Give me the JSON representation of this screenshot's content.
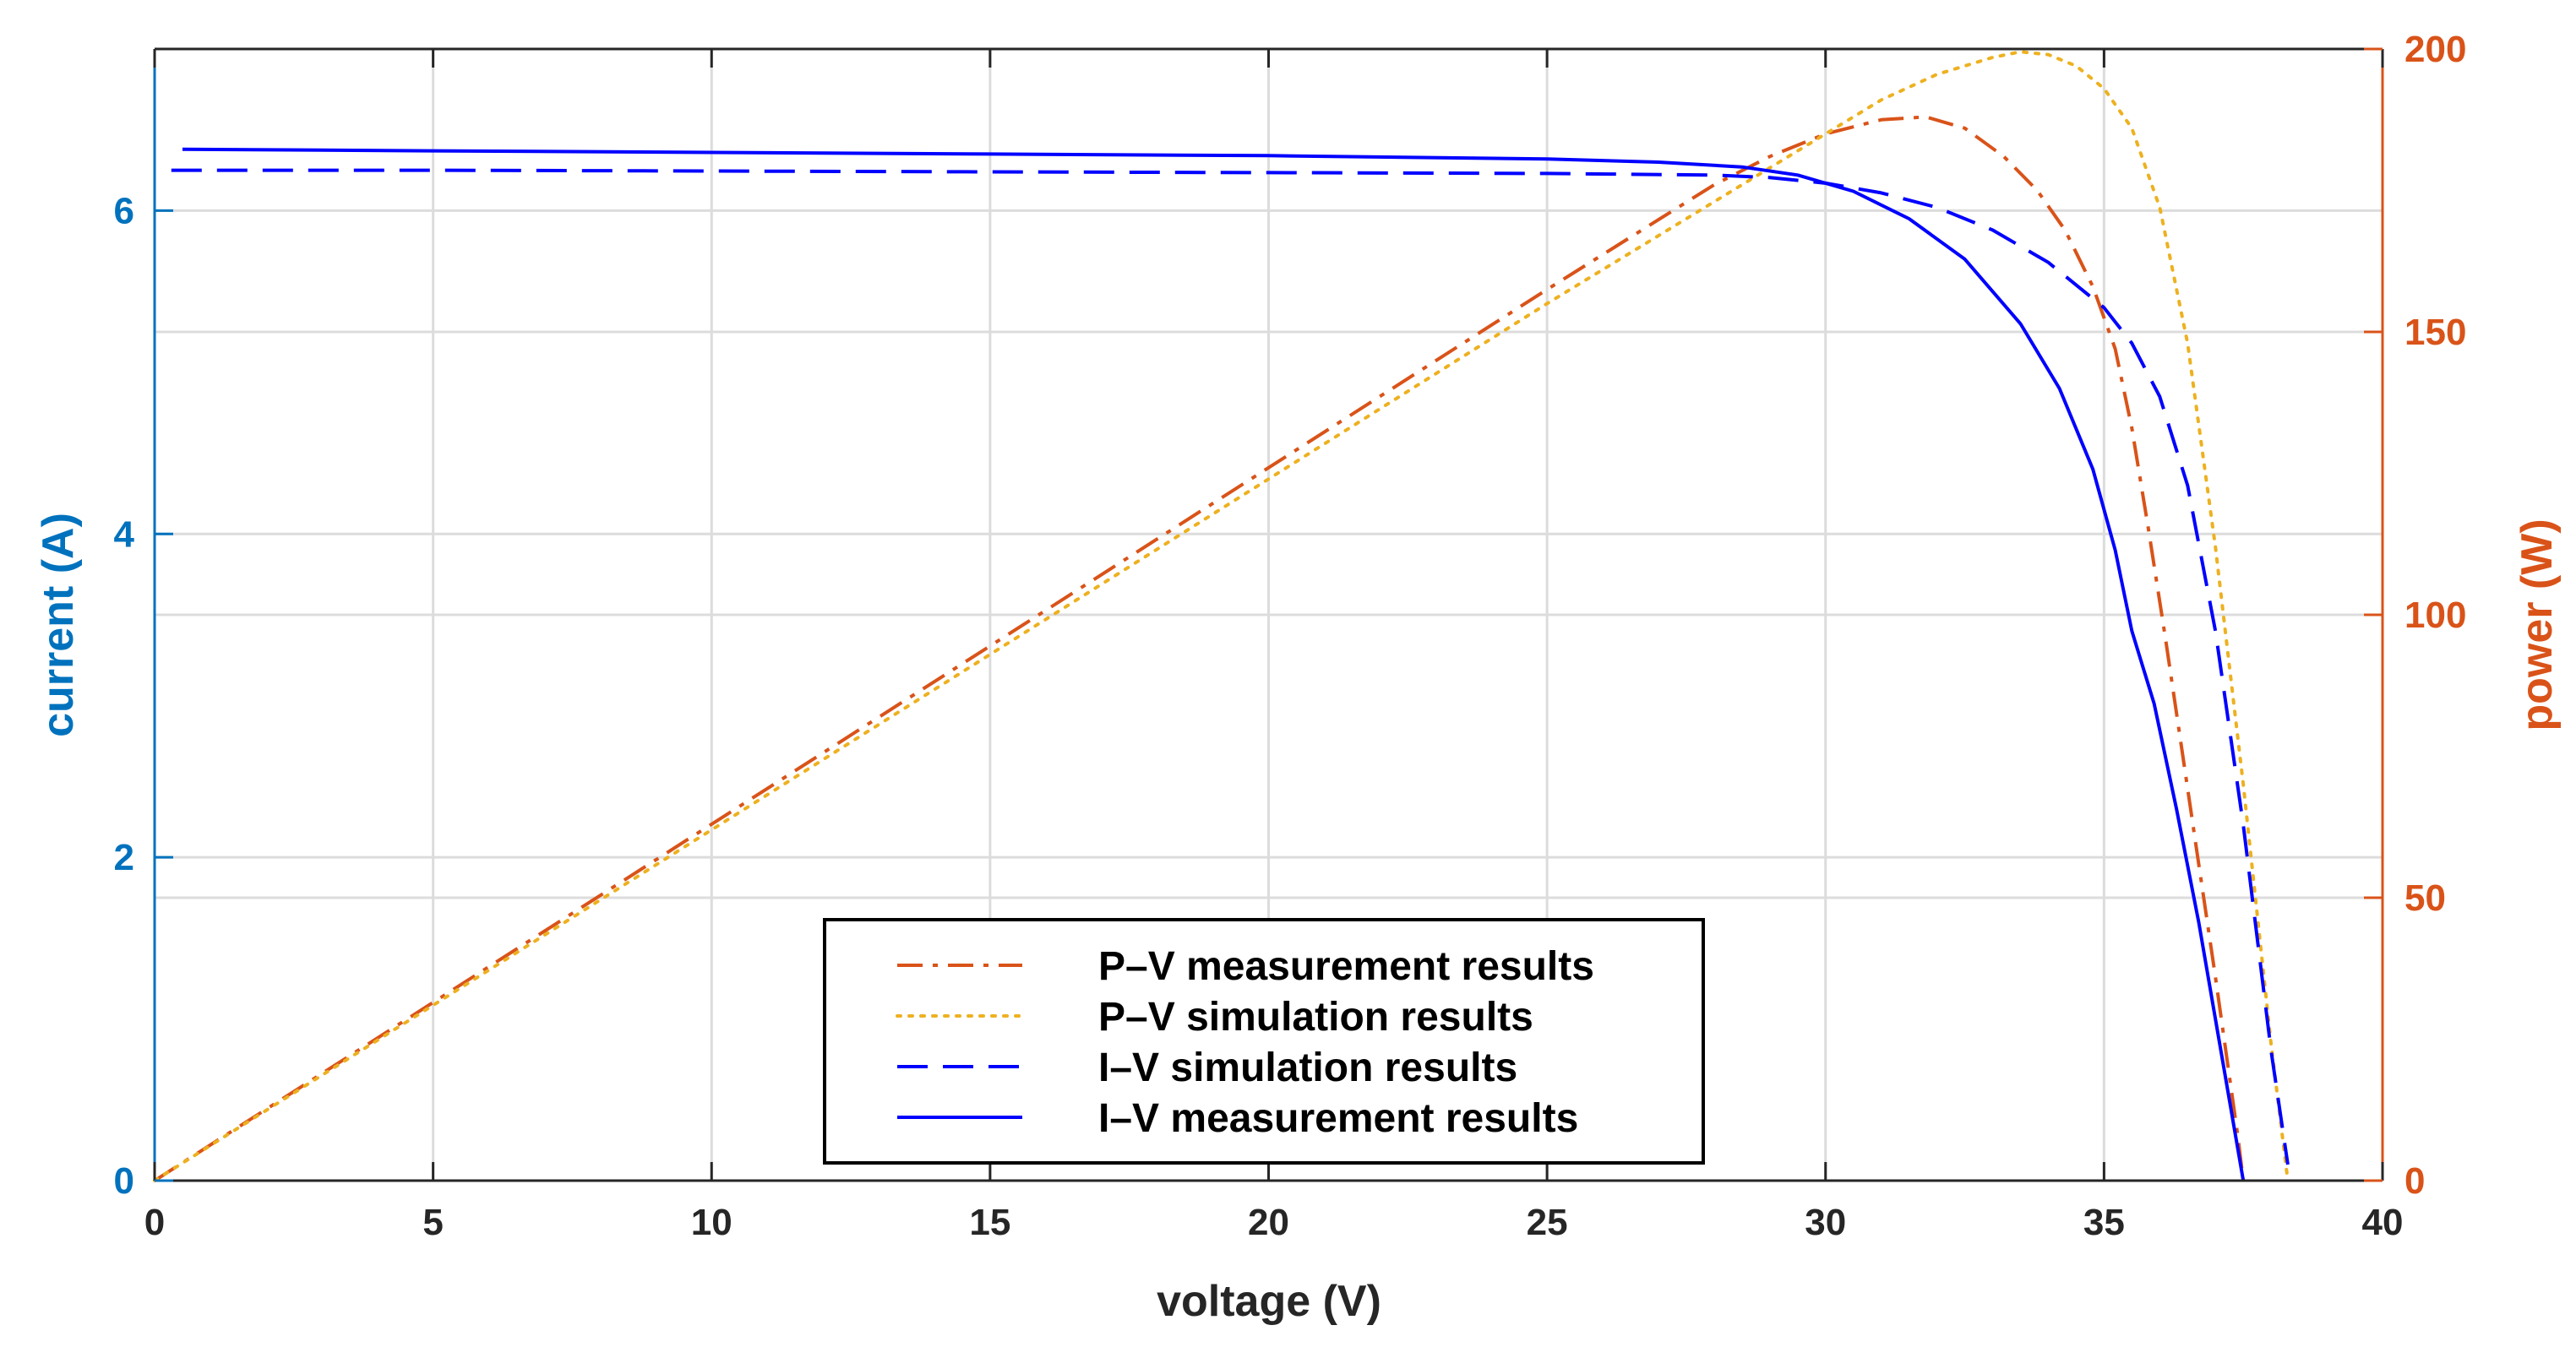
{
  "chart_data": {
    "type": "line",
    "xlabel": "voltage (V)",
    "ylabel_left": "current (A)",
    "ylabel_right": "power (W)",
    "xlim": [
      0,
      40
    ],
    "ylim_left": [
      0,
      7
    ],
    "ylim_right": [
      0,
      200
    ],
    "xticks": [
      0,
      5,
      10,
      15,
      20,
      25,
      30,
      35,
      40
    ],
    "xtick_labels": [
      "0",
      "5",
      "10",
      "15",
      "20",
      "25",
      "30",
      "35",
      "40"
    ],
    "yticks_left": [
      0,
      2,
      4,
      6
    ],
    "ytick_labels_left": [
      "0",
      "2",
      "4",
      "6"
    ],
    "yticks_right": [
      0,
      50,
      100,
      150,
      200
    ],
    "ytick_labels_right": [
      "0",
      "50",
      "100",
      "150",
      "200"
    ],
    "grid": true,
    "legend_position": "bottom-center",
    "colors": {
      "left_axis": "#0072BD",
      "right_axis": "#D95319",
      "axis_dark": "#262626",
      "grid": "#DCDCDC"
    },
    "series": [
      {
        "name": "P–V measurement results",
        "axis": "right",
        "style": "dashdot",
        "color": "#D95319",
        "x": [
          0,
          5,
          10,
          15,
          20,
          25,
          28,
          29,
          30,
          31,
          31.8,
          32.5,
          33.2,
          33.8,
          34.3,
          34.8,
          35.2,
          35.5,
          35.8,
          36.1,
          36.4,
          36.7,
          37.0,
          37.2,
          37.4,
          37.5
        ],
        "y": [
          0,
          31.5,
          63,
          94.5,
          126,
          157.5,
          176,
          181,
          185,
          187.5,
          188,
          186,
          181,
          175,
          168,
          158,
          147,
          133,
          115,
          96,
          76,
          56,
          36,
          22,
          8,
          0
        ]
      },
      {
        "name": "P–V simulation results",
        "axis": "right",
        "style": "dotted",
        "color": "#EDB120",
        "x": [
          0,
          5,
          10,
          15,
          20,
          25,
          28,
          30,
          31,
          32,
          33,
          33.5,
          34,
          34.5,
          35,
          35.5,
          36,
          36.5,
          37,
          37.5,
          38,
          38.3
        ],
        "y": [
          0,
          31,
          62,
          93,
          124,
          155,
          173,
          185,
          191,
          195.5,
          198.5,
          199.5,
          199,
          197,
          193,
          186,
          172,
          148,
          112,
          70,
          24,
          0
        ]
      },
      {
        "name": "I–V simulation results",
        "axis": "left",
        "style": "dashed",
        "color": "#0000FF",
        "x": [
          0.3,
          5,
          10,
          15,
          20,
          25,
          28,
          29,
          30,
          31,
          32,
          33,
          34,
          35,
          35.5,
          36,
          36.5,
          37,
          37.5,
          38,
          38.3
        ],
        "y": [
          6.25,
          6.25,
          6.245,
          6.24,
          6.235,
          6.23,
          6.22,
          6.205,
          6.17,
          6.11,
          6.02,
          5.88,
          5.68,
          5.4,
          5.18,
          4.85,
          4.3,
          3.4,
          2.2,
          0.8,
          0.1
        ]
      },
      {
        "name": "I–V measurement results",
        "axis": "left",
        "style": "solid",
        "color": "#0000FF",
        "x": [
          0.5,
          5,
          10,
          15,
          20,
          25,
          27,
          28.5,
          29.5,
          30.5,
          31.5,
          32.5,
          33.5,
          34.2,
          34.8,
          35.2,
          35.5,
          35.9,
          36.3,
          36.7,
          37.0,
          37.3,
          37.5
        ],
        "y": [
          6.38,
          6.37,
          6.36,
          6.35,
          6.34,
          6.32,
          6.3,
          6.27,
          6.22,
          6.12,
          5.95,
          5.7,
          5.3,
          4.9,
          4.4,
          3.9,
          3.4,
          2.95,
          2.3,
          1.6,
          1.0,
          0.4,
          0.0
        ]
      }
    ]
  }
}
